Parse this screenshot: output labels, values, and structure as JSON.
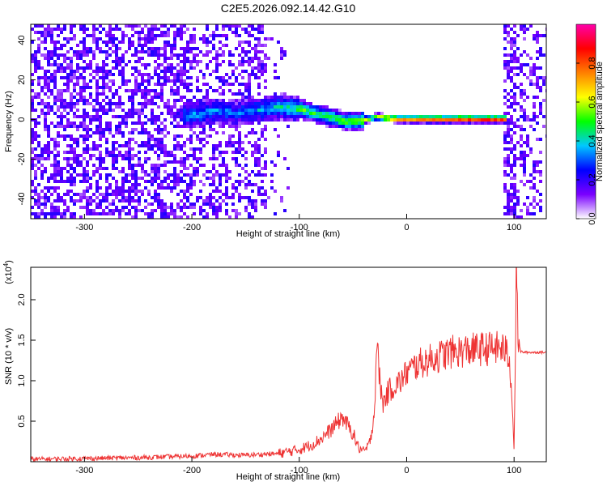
{
  "chart_data": [
    {
      "type": "heatmap",
      "title": "C2E5.2026.092.14.42.G10",
      "xlabel": "Height of straight line (km)",
      "ylabel": "Frequency (Hz)",
      "xlim": [
        -350,
        130
      ],
      "ylim": [
        -50,
        48
      ],
      "xticks": [
        "-300",
        "-200",
        "-100",
        "0",
        "100"
      ],
      "yticks": [
        "-40",
        "-20",
        "0",
        "20",
        "40"
      ],
      "colorbar": {
        "label": "Normalized spectral amplitude",
        "range": [
          0.0,
          1.0
        ],
        "ticks": [
          "0.0",
          "0.2",
          "0.4",
          "0.6",
          "0.8"
        ],
        "stops": [
          "#ffffff",
          "#7a00ff",
          "#0000ff",
          "#00c8ff",
          "#00ff00",
          "#ffff00",
          "#ff8000",
          "#ff0000",
          "#ff00aa"
        ]
      },
      "ridge": [
        {
          "x": -200,
          "f": 3,
          "amp": 0.3
        },
        {
          "x": -180,
          "f": 5,
          "amp": 0.3
        },
        {
          "x": -160,
          "f": 4,
          "amp": 0.25
        },
        {
          "x": -120,
          "f": 7,
          "amp": 0.35
        },
        {
          "x": -100,
          "f": 6,
          "amp": 0.45
        },
        {
          "x": -80,
          "f": 3,
          "amp": 0.45
        },
        {
          "x": -60,
          "f": 0,
          "amp": 0.5
        },
        {
          "x": -45,
          "f": 0,
          "amp": 0.55
        },
        {
          "x": -30,
          "f": 2,
          "amp": 0.6
        },
        {
          "x": -10,
          "f": 1,
          "amp": 0.8
        },
        {
          "x": 10,
          "f": 1,
          "amp": 0.85
        },
        {
          "x": 50,
          "f": 1,
          "amp": 0.9
        },
        {
          "x": 90,
          "f": 1,
          "amp": 0.9
        }
      ]
    },
    {
      "type": "line",
      "xlabel": "Height of straight line (km)",
      "ylabel": "SNR (10 * v/v)",
      "multiplier": "(x10",
      "multiplier_exp": "4",
      "multiplier_close": ")",
      "xlim": [
        -350,
        130
      ],
      "ylim": [
        0,
        2.4
      ],
      "xticks": [
        "-300",
        "-200",
        "-100",
        "0",
        "100"
      ],
      "yticks": [
        "0.5",
        "1.0",
        "1.5",
        "2.0"
      ],
      "color": "#ee3333",
      "x": [
        -350,
        -300,
        -250,
        -200,
        -180,
        -150,
        -120,
        -100,
        -90,
        -80,
        -70,
        -60,
        -50,
        -45,
        -40,
        -35,
        -30,
        -28,
        -25,
        -22,
        -20,
        -15,
        -10,
        -5,
        0,
        10,
        20,
        30,
        40,
        60,
        80,
        90,
        95,
        98,
        100,
        102,
        104,
        106,
        110,
        120,
        130
      ],
      "y": [
        0.03,
        0.04,
        0.05,
        0.07,
        0.09,
        0.08,
        0.1,
        0.15,
        0.2,
        0.28,
        0.4,
        0.55,
        0.35,
        0.18,
        0.12,
        0.2,
        0.6,
        1.5,
        1.0,
        0.7,
        0.8,
        0.9,
        0.95,
        1.0,
        1.1,
        1.2,
        1.25,
        1.3,
        1.35,
        1.38,
        1.4,
        1.4,
        1.3,
        0.9,
        0.1,
        2.3,
        1.5,
        1.36,
        1.35,
        1.35,
        1.35
      ]
    }
  ]
}
